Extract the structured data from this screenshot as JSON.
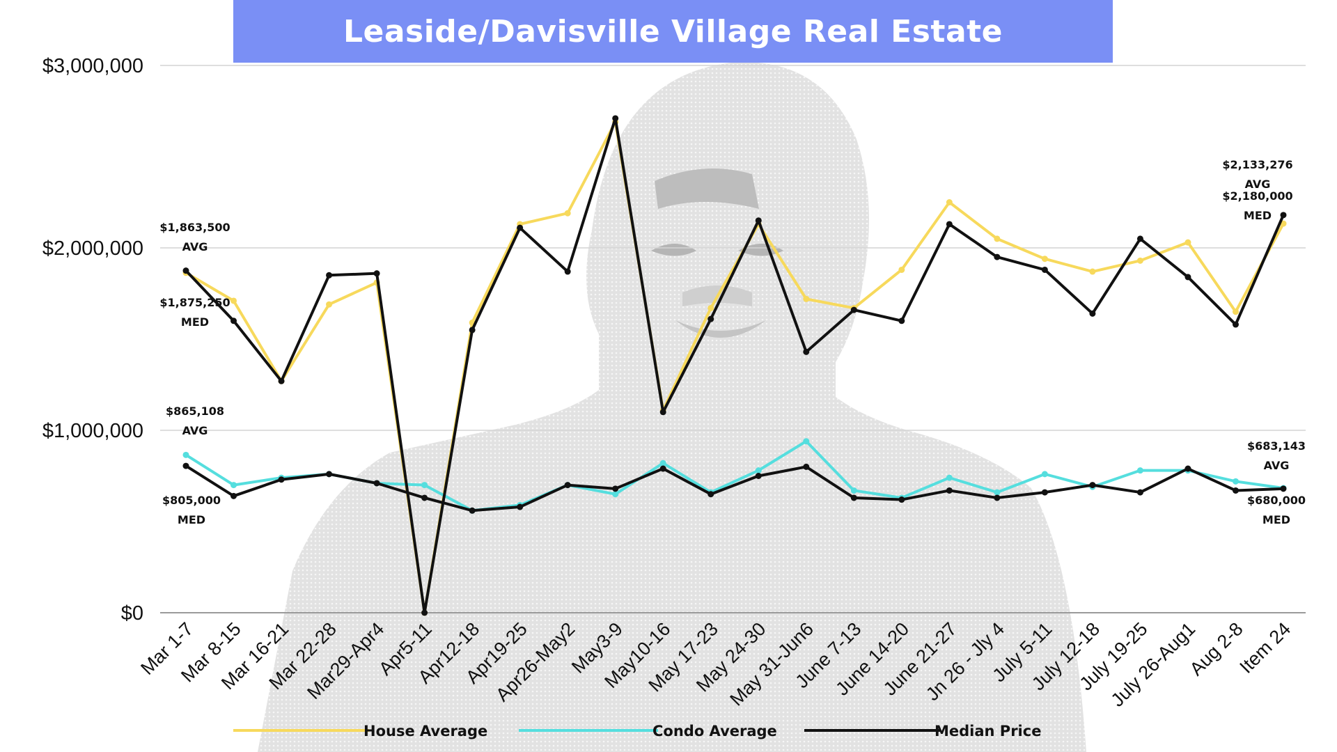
{
  "chart_data": {
    "type": "line",
    "title": "Leaside/Davisville Village Real Estate",
    "categories": [
      "Mar 1-7",
      "Mar 8-15",
      "Mar 16-21",
      "Mar 22-28",
      "Mar29-Apr4",
      "Apr5-11",
      "Apr12-18",
      "Apr19-25",
      "Apr26-May2",
      "May3-9",
      "May10-16",
      "May 17-23",
      "May 24-30",
      "May 31-Jun6",
      "June 7-13",
      "June 14-20",
      "June 21-27",
      "Jn 26 - Jly 4",
      "July 5-11",
      "July 12-18",
      "July 19-25",
      "July 26-Aug1",
      "Aug 2-8",
      "Item 24"
    ],
    "ylim": [
      0,
      3000000
    ],
    "yticks": [
      {
        "value": 0,
        "label": "$0"
      },
      {
        "value": 1000000,
        "label": "$1,000,000"
      },
      {
        "value": 2000000,
        "label": "$2,000,000"
      },
      {
        "value": 3000000,
        "label": "$3,000,000"
      }
    ],
    "grid": true,
    "legend_position": "bottom",
    "series": [
      {
        "name": "House Average",
        "color": "#f7d95c",
        "values": [
          1863500,
          1710000,
          1270000,
          1690000,
          1810000,
          0,
          1590000,
          2130000,
          2190000,
          2690000,
          1110000,
          1670000,
          2130000,
          1720000,
          1670000,
          1880000,
          2250000,
          2050000,
          1940000,
          1870000,
          1930000,
          2030000,
          1650000,
          2133276
        ]
      },
      {
        "name": "Condo Average",
        "color": "#55dede",
        "values": [
          865108,
          700000,
          740000,
          760000,
          710000,
          700000,
          560000,
          590000,
          700000,
          650000,
          820000,
          660000,
          780000,
          940000,
          670000,
          630000,
          740000,
          660000,
          760000,
          690000,
          780000,
          780000,
          720000,
          683143
        ]
      },
      {
        "name": "Median Price",
        "color": "#111111",
        "values": [
          1875250,
          1600000,
          1270000,
          1850000,
          1860000,
          0,
          1550000,
          2110000,
          1870000,
          2710000,
          1100000,
          1610000,
          2150000,
          1430000,
          1660000,
          1600000,
          2130000,
          1950000,
          1880000,
          1640000,
          2050000,
          1840000,
          1580000,
          2180000
        ]
      },
      {
        "name": "Median Price",
        "color": "#111111",
        "values": [
          805000,
          640000,
          730000,
          760000,
          710000,
          630000,
          560000,
          580000,
          700000,
          680000,
          790000,
          650000,
          750000,
          800000,
          630000,
          620000,
          670000,
          630000,
          660000,
          700000,
          660000,
          790000,
          670000,
          680000
        ]
      }
    ],
    "annotations": [
      {
        "index": 0,
        "series": 0,
        "value": "$1,863,500",
        "tag": "AVG"
      },
      {
        "index": 0,
        "series": 2,
        "value": "$1,875,250",
        "tag": "MED"
      },
      {
        "index": 0,
        "series": 1,
        "value": "$865,108",
        "tag": "AVG"
      },
      {
        "index": 0,
        "series": 3,
        "value": "$805,000",
        "tag": "MED"
      },
      {
        "index": 23,
        "series": 0,
        "value": "$2,133,276",
        "tag": "AVG"
      },
      {
        "index": 23,
        "series": 2,
        "value": "$2,180,000",
        "tag": "MED"
      },
      {
        "index": 23,
        "series": 1,
        "value": "$683,143",
        "tag": "AVG"
      },
      {
        "index": 23,
        "series": 3,
        "value": "$680,000",
        "tag": "MED"
      }
    ],
    "legend": [
      {
        "name": "House Average",
        "color": "#f7d95c"
      },
      {
        "name": "Condo Average",
        "color": "#55dede"
      },
      {
        "name": "Median Price",
        "color": "#111111"
      }
    ]
  }
}
